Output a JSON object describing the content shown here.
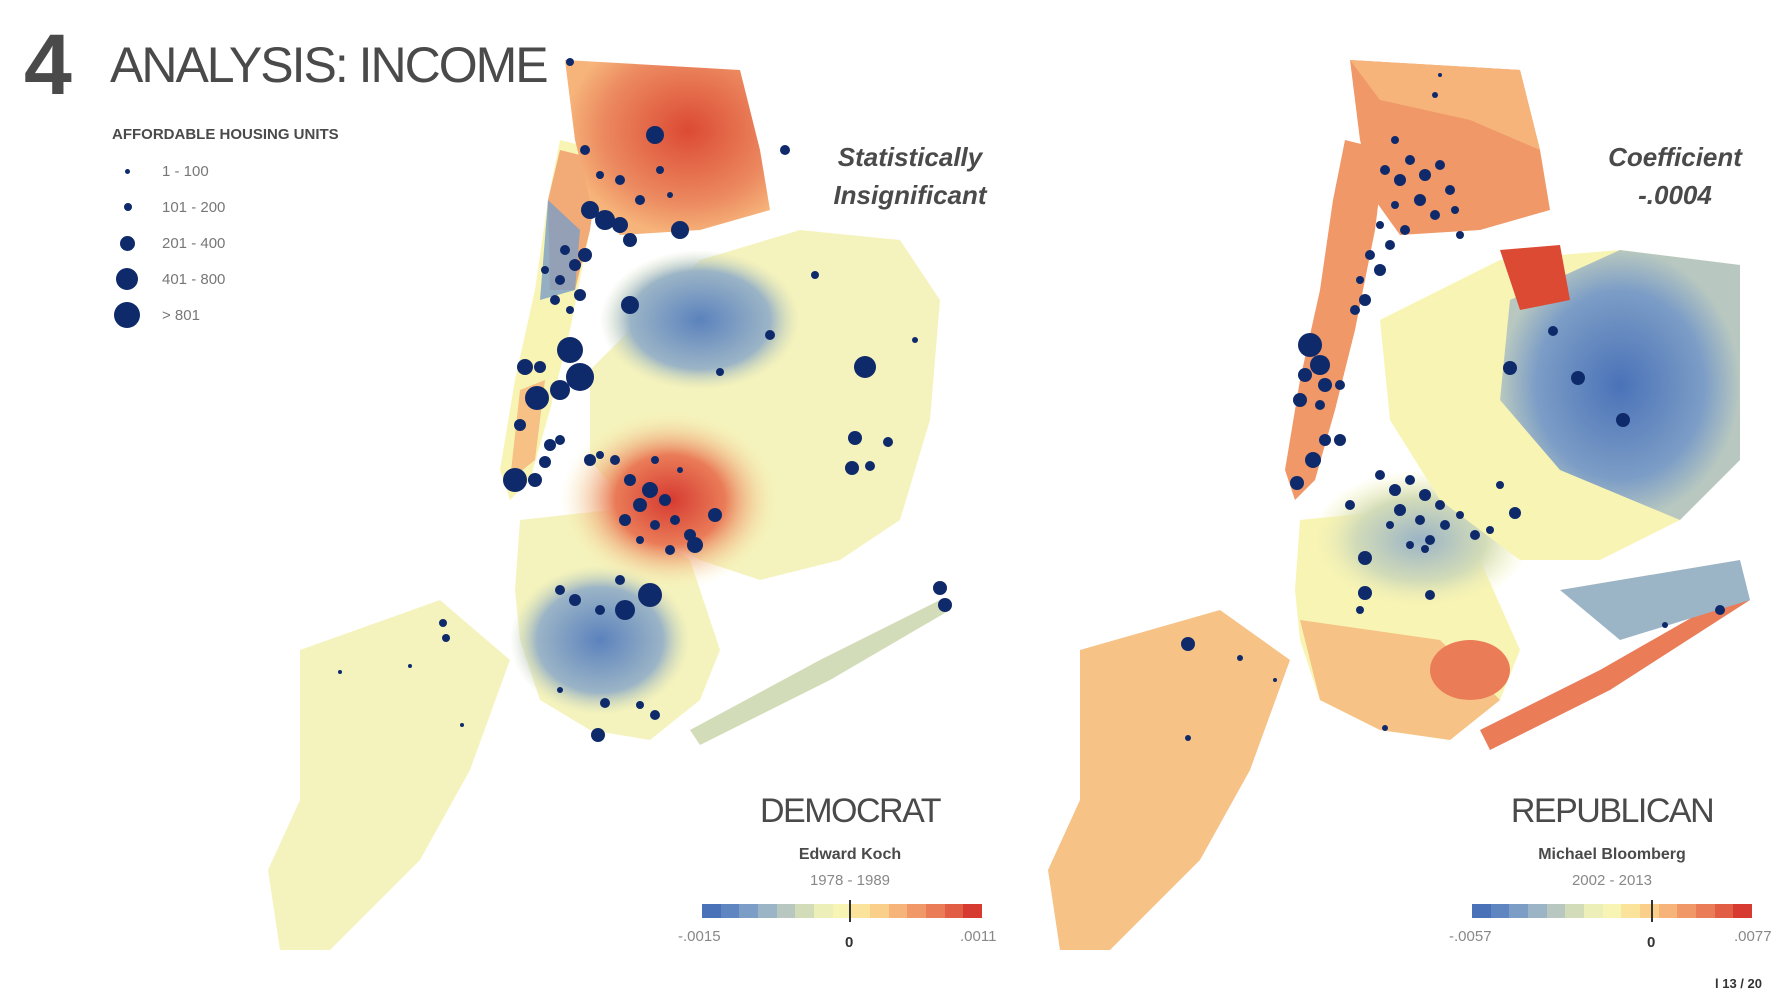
{
  "header": {
    "number": "4",
    "title": "ANALYSIS: INCOME"
  },
  "legend": {
    "title": "AFFORDABLE HOUSING UNITS",
    "items": [
      {
        "label": "1 - 100",
        "size": "smallest"
      },
      {
        "label": "101 - 200",
        "size": "small"
      },
      {
        "label": "201 - 400",
        "size": "medium"
      },
      {
        "label": "401 - 800",
        "size": "large"
      },
      {
        "label": "> 801",
        "size": "largest"
      }
    ],
    "dot_color": "#0f2a6b"
  },
  "maps": [
    {
      "note_line1": "Statistically",
      "note_line2": "Insignificant",
      "party": "DEMOCRAT",
      "mayor": "Edward Koch",
      "years": "1978 - 1989",
      "scale_min": "-.0015",
      "scale_zero": "0",
      "scale_max": ".0011"
    },
    {
      "note_line1": "Coefficient",
      "note_line2": "-.0004",
      "party": "REPUBLICAN",
      "mayor": "Michael Bloomberg",
      "years": "2002 - 2013",
      "scale_min": "-.0057",
      "scale_zero": "0",
      "scale_max": ".0077"
    }
  ],
  "colors": {
    "scale": [
      "#4a72b8",
      "#5f86c0",
      "#7c9dc6",
      "#9bb4c6",
      "#b8c8c0",
      "#d3dcb8",
      "#ecefb8",
      "#f8f4b4",
      "#fbe39c",
      "#f9cf8a",
      "#f6b47a",
      "#f09868",
      "#ea7c58",
      "#e15e45",
      "#d63a30"
    ],
    "map_blue": "#5b82bd",
    "map_red": "#dc4a34",
    "map_yellow": "#f5f3bd",
    "map_orange": "#f6c286"
  },
  "page": "l 13 / 20"
}
